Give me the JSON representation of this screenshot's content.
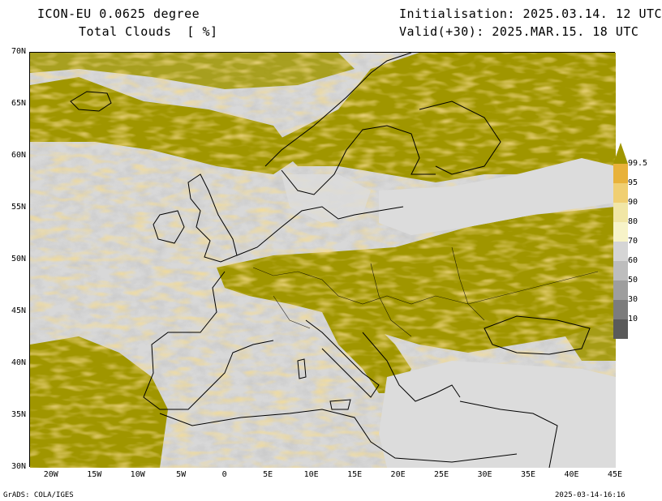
{
  "header": {
    "model": "ICON-EU 0.0625 degree",
    "variable": "Total Clouds  [ %]",
    "init": "Initialisation: 2025.03.14. 12 UTC",
    "valid": "Valid(+30): 2025.MAR.15. 18 UTC"
  },
  "axes": {
    "lat_labels": [
      "70N",
      "65N",
      "60N",
      "55N",
      "50N",
      "45N",
      "40N",
      "35N",
      "30N"
    ],
    "lon_labels": [
      "20W",
      "15W",
      "10W",
      "5W",
      "0",
      "5E",
      "10E",
      "15E",
      "20E",
      "25E",
      "30E",
      "35E",
      "40E",
      "45E"
    ]
  },
  "legend": {
    "labels": [
      "99.5",
      "95",
      "90",
      "80",
      "70",
      "60",
      "50",
      "30",
      "10"
    ],
    "colors": [
      "#a09600",
      "#e8b23a",
      "#f0cf72",
      "#f1e6a6",
      "#f7f3c8",
      "#d5d5d5",
      "#bdbdbd",
      "#9e9e9e",
      "#7c7c7c",
      "#5a5a5a"
    ]
  },
  "colors": {
    "overcast": "#a09600",
    "clear": "#d8d8d8",
    "coast": "#000000"
  },
  "footer": {
    "left": "GrADS: COLA/IGES",
    "right": "2025-03-14-16:16"
  }
}
